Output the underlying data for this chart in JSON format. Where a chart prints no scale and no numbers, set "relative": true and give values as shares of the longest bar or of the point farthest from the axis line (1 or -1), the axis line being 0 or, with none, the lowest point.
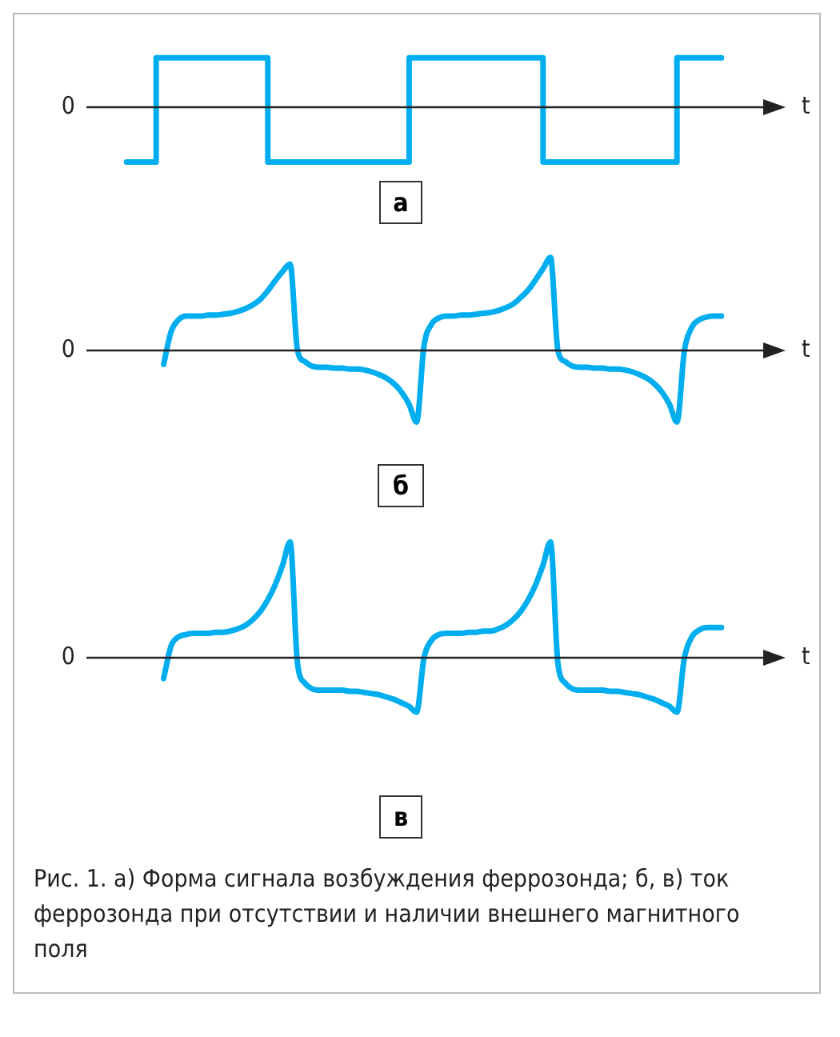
{
  "chart_data": [
    {
      "type": "step",
      "relative": true,
      "title": "а",
      "xlabel": "t",
      "ref_lines": [
        {
          "axis": "y",
          "value": 0,
          "label": "0"
        }
      ],
      "categories": [
        null,
        null,
        null,
        null,
        null,
        null,
        null,
        null,
        null,
        null,
        null,
        null,
        null,
        null,
        null,
        null,
        null,
        null,
        null,
        null,
        null,
        null,
        null,
        null,
        null,
        null,
        null,
        null,
        null,
        null,
        null,
        null,
        null,
        null,
        null,
        null,
        null,
        null,
        null,
        null,
        null,
        null,
        null,
        null,
        null,
        null,
        null,
        null,
        null,
        null,
        null,
        null,
        null,
        null,
        null,
        null,
        null,
        null,
        null,
        null,
        null,
        null,
        null,
        null,
        null,
        null,
        null,
        null,
        null,
        null,
        null,
        null,
        null,
        null,
        null,
        null,
        null,
        null,
        null,
        null,
        null
      ],
      "series": [
        {
          "color": "#00aeef",
          "values": [
            -1,
            -1,
            -1,
            -1,
            -1,
            0.9,
            0.9,
            0.9,
            0.9,
            0.9,
            0.9,
            0.9,
            0.9,
            0.9,
            0.9,
            0.9,
            0.9,
            0.9,
            0.9,
            0.9,
            -1,
            -1,
            -1,
            -1,
            -1,
            -1,
            -1,
            -1,
            -1,
            -1,
            -1,
            -1,
            -1,
            -1,
            -1,
            -1,
            -1,
            -1,
            -1,
            0.9,
            0.9,
            0.9,
            0.9,
            0.9,
            0.9,
            0.9,
            0.9,
            0.9,
            0.9,
            0.9,
            0.9,
            0.9,
            0.9,
            0.9,
            0.9,
            0.9,
            0.9,
            -1,
            -1,
            -1,
            -1,
            -1,
            -1,
            -1,
            -1,
            -1,
            -1,
            -1,
            -1,
            -1,
            -1,
            -1,
            -1,
            -1,
            -1,
            0.9,
            0.9,
            0.9,
            0.9,
            0.9,
            0.9
          ]
        }
      ]
    },
    {
      "type": "line",
      "relative": true,
      "title": "б",
      "xlabel": "t",
      "ref_lines": [
        {
          "axis": "y",
          "value": 0,
          "label": "0"
        }
      ],
      "categories": [
        null,
        null,
        null,
        null,
        null,
        null,
        null,
        null,
        null,
        null,
        null,
        null,
        null,
        null,
        null,
        null,
        null,
        null,
        null,
        null,
        null,
        null,
        null,
        null,
        null,
        null,
        null,
        null,
        null,
        null,
        null,
        null,
        null,
        null,
        null,
        null,
        null,
        null,
        null,
        null,
        null,
        null,
        null,
        null,
        null,
        null,
        null,
        null,
        null,
        null,
        null,
        null,
        null,
        null,
        null,
        null,
        null,
        null,
        null,
        null,
        null,
        null,
        null,
        null,
        null,
        null,
        null,
        null,
        null,
        null,
        null,
        null,
        null,
        null,
        null,
        null,
        null,
        null,
        null,
        null,
        null
      ],
      "series": [
        {
          "color": "#00aeef",
          "values": [
            null,
            null,
            null,
            null,
            null,
            -0.15,
            0.2,
            0.33,
            0.37,
            0.37,
            0.37,
            0.38,
            0.38,
            0.39,
            0.4,
            0.42,
            0.45,
            0.49,
            0.55,
            0.64,
            0.75,
            0.85,
            0.93,
            0,
            -0.12,
            -0.17,
            -0.18,
            -0.18,
            -0.19,
            -0.19,
            -0.2,
            -0.2,
            -0.21,
            -0.23,
            -0.26,
            -0.3,
            -0.36,
            -0.45,
            -0.58,
            -0.77,
            0.05,
            0.28,
            0.35,
            0.37,
            0.37,
            0.38,
            0.38,
            0.39,
            0.4,
            0.41,
            0.43,
            0.46,
            0.5,
            0.57,
            0.65,
            0.76,
            0.88,
            1,
            0,
            -0.12,
            -0.17,
            -0.18,
            -0.18,
            -0.19,
            -0.19,
            -0.2,
            -0.2,
            -0.21,
            -0.23,
            -0.26,
            -0.3,
            -0.36,
            -0.45,
            -0.58,
            -0.77,
            0,
            0.25,
            0.33,
            0.36,
            0.37,
            0.37
          ]
        }
      ]
    },
    {
      "type": "line",
      "relative": true,
      "title": "в",
      "xlabel": "t",
      "ref_lines": [
        {
          "axis": "y",
          "value": 0,
          "label": "0"
        }
      ],
      "annotations": [
        "Рис. 1. а) Форма сигнала возбуждения феррозонда; б, в) ток феррозонда при отсутствии и наличии внешнего магнитного поля"
      ],
      "categories": [
        null,
        null,
        null,
        null,
        null,
        null,
        null,
        null,
        null,
        null,
        null,
        null,
        null,
        null,
        null,
        null,
        null,
        null,
        null,
        null,
        null,
        null,
        null,
        null,
        null,
        null,
        null,
        null,
        null,
        null,
        null,
        null,
        null,
        null,
        null,
        null,
        null,
        null,
        null,
        null,
        null,
        null,
        null,
        null,
        null,
        null,
        null,
        null,
        null,
        null,
        null,
        null,
        null,
        null,
        null,
        null,
        null,
        null,
        null,
        null,
        null,
        null,
        null,
        null,
        null,
        null,
        null,
        null,
        null,
        null,
        null,
        null,
        null,
        null,
        null,
        null,
        null,
        null,
        null,
        null,
        null
      ],
      "series": [
        {
          "color": "#00aeef",
          "values": [
            null,
            null,
            null,
            null,
            null,
            -0.18,
            0.1,
            0.18,
            0.2,
            0.21,
            0.21,
            0.21,
            0.22,
            0.22,
            0.23,
            0.25,
            0.28,
            0.33,
            0.4,
            0.5,
            0.63,
            0.8,
            1,
            -0.05,
            -0.22,
            -0.27,
            -0.28,
            -0.28,
            -0.28,
            -0.28,
            -0.29,
            -0.29,
            -0.3,
            -0.31,
            -0.32,
            -0.34,
            -0.36,
            -0.39,
            -0.42,
            -0.47,
            0,
            0.15,
            0.2,
            0.21,
            0.21,
            0.21,
            0.22,
            0.22,
            0.23,
            0.23,
            0.25,
            0.28,
            0.33,
            0.4,
            0.5,
            0.63,
            0.8,
            1,
            -0.05,
            -0.22,
            -0.27,
            -0.28,
            -0.28,
            -0.28,
            -0.28,
            -0.29,
            -0.29,
            -0.3,
            -0.31,
            -0.32,
            -0.34,
            -0.36,
            -0.39,
            -0.42,
            -0.47,
            0,
            0.18,
            0.24,
            0.26,
            0.26,
            0.26
          ]
        }
      ]
    }
  ]
}
